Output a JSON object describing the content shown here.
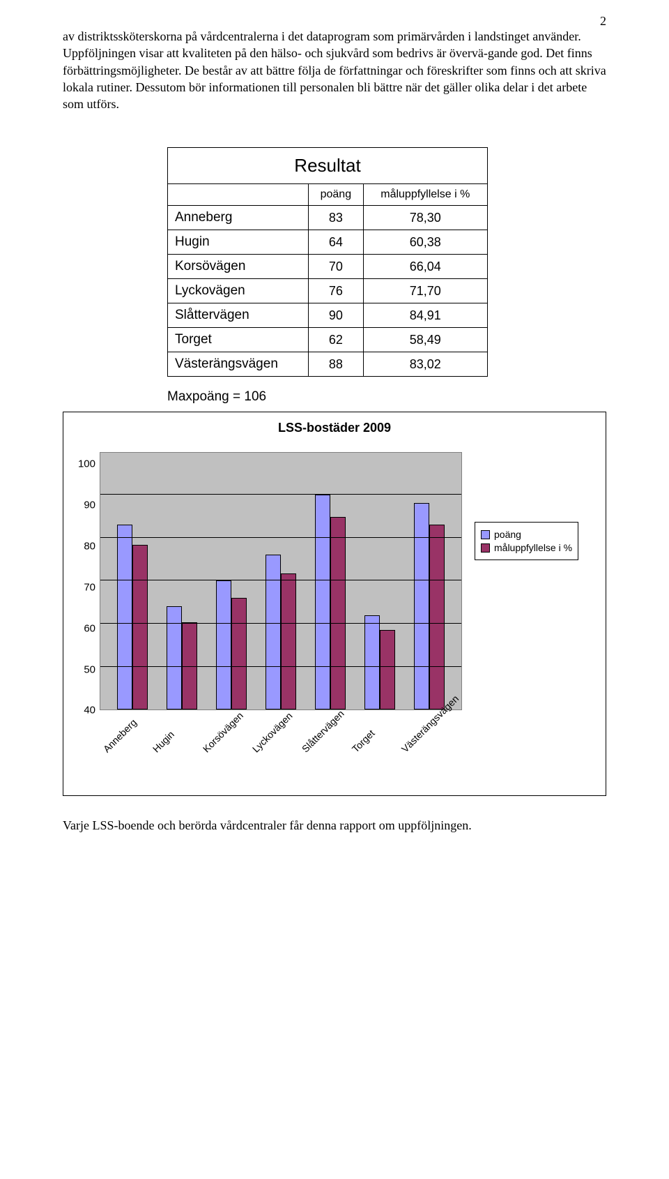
{
  "page_number": "2",
  "paragraphs": {
    "p1": "av distriktssköterskorna på vårdcentralerna i det dataprogram som primärvården i landstinget använder. Uppföljningen visar att kvaliteten på den hälso- och sjukvård som bedrivs är övervä-gande god. Det finns förbättringsmöjligheter. De består av att bättre följa de författningar och föreskrifter som finns och att skriva lokala rutiner. Dessutom bör informationen till personalen bli bättre när det gäller olika delar i det arbete som utförs.",
    "footer": "Varje LSS-boende och berörda vårdcentraler får denna rapport om uppföljningen."
  },
  "table": {
    "title": "Resultat",
    "headers": {
      "col1": "",
      "col2": "poäng",
      "col3": "måluppfyllelse i %"
    },
    "rows": [
      {
        "name": "Anneberg",
        "poang": "83",
        "pct": "78,30"
      },
      {
        "name": "Hugin",
        "poang": "64",
        "pct": "60,38"
      },
      {
        "name": "Korsövägen",
        "poang": "70",
        "pct": "66,04"
      },
      {
        "name": "Lyckovägen",
        "poang": "76",
        "pct": "71,70"
      },
      {
        "name": "Slåttervägen",
        "poang": "90",
        "pct": "84,91"
      },
      {
        "name": "Torget",
        "poang": "62",
        "pct": "58,49"
      },
      {
        "name": "Västerängsvägen",
        "poang": "88",
        "pct": "83,02"
      }
    ],
    "maxpoang": "Maxpoäng = 106"
  },
  "chart": {
    "title": "LSS-bostäder 2009",
    "type": "bar",
    "categories": [
      "Anneberg",
      "Hugin",
      "Korsövägen",
      "Lyckovägen",
      "Slåttervägen",
      "Torget",
      "Västerängsvägen"
    ],
    "series": [
      {
        "name": "poäng",
        "color": "#9999ff",
        "values": [
          83,
          64,
          70,
          76,
          90,
          62,
          88
        ]
      },
      {
        "name": "måluppfyllelse i %",
        "color": "#993366",
        "values": [
          78.3,
          60.38,
          66.04,
          71.7,
          84.91,
          58.49,
          83.02
        ]
      }
    ],
    "ylim": [
      40,
      100
    ],
    "ytick_step": 10,
    "yticks": [
      "40",
      "50",
      "60",
      "70",
      "80",
      "90",
      "100"
    ],
    "plot_bg": "#c0c0c0",
    "grid_color": "#000000",
    "border_color": "#808080",
    "legend_labels": {
      "a": "poäng",
      "b": "måluppfyllelse i %"
    }
  }
}
